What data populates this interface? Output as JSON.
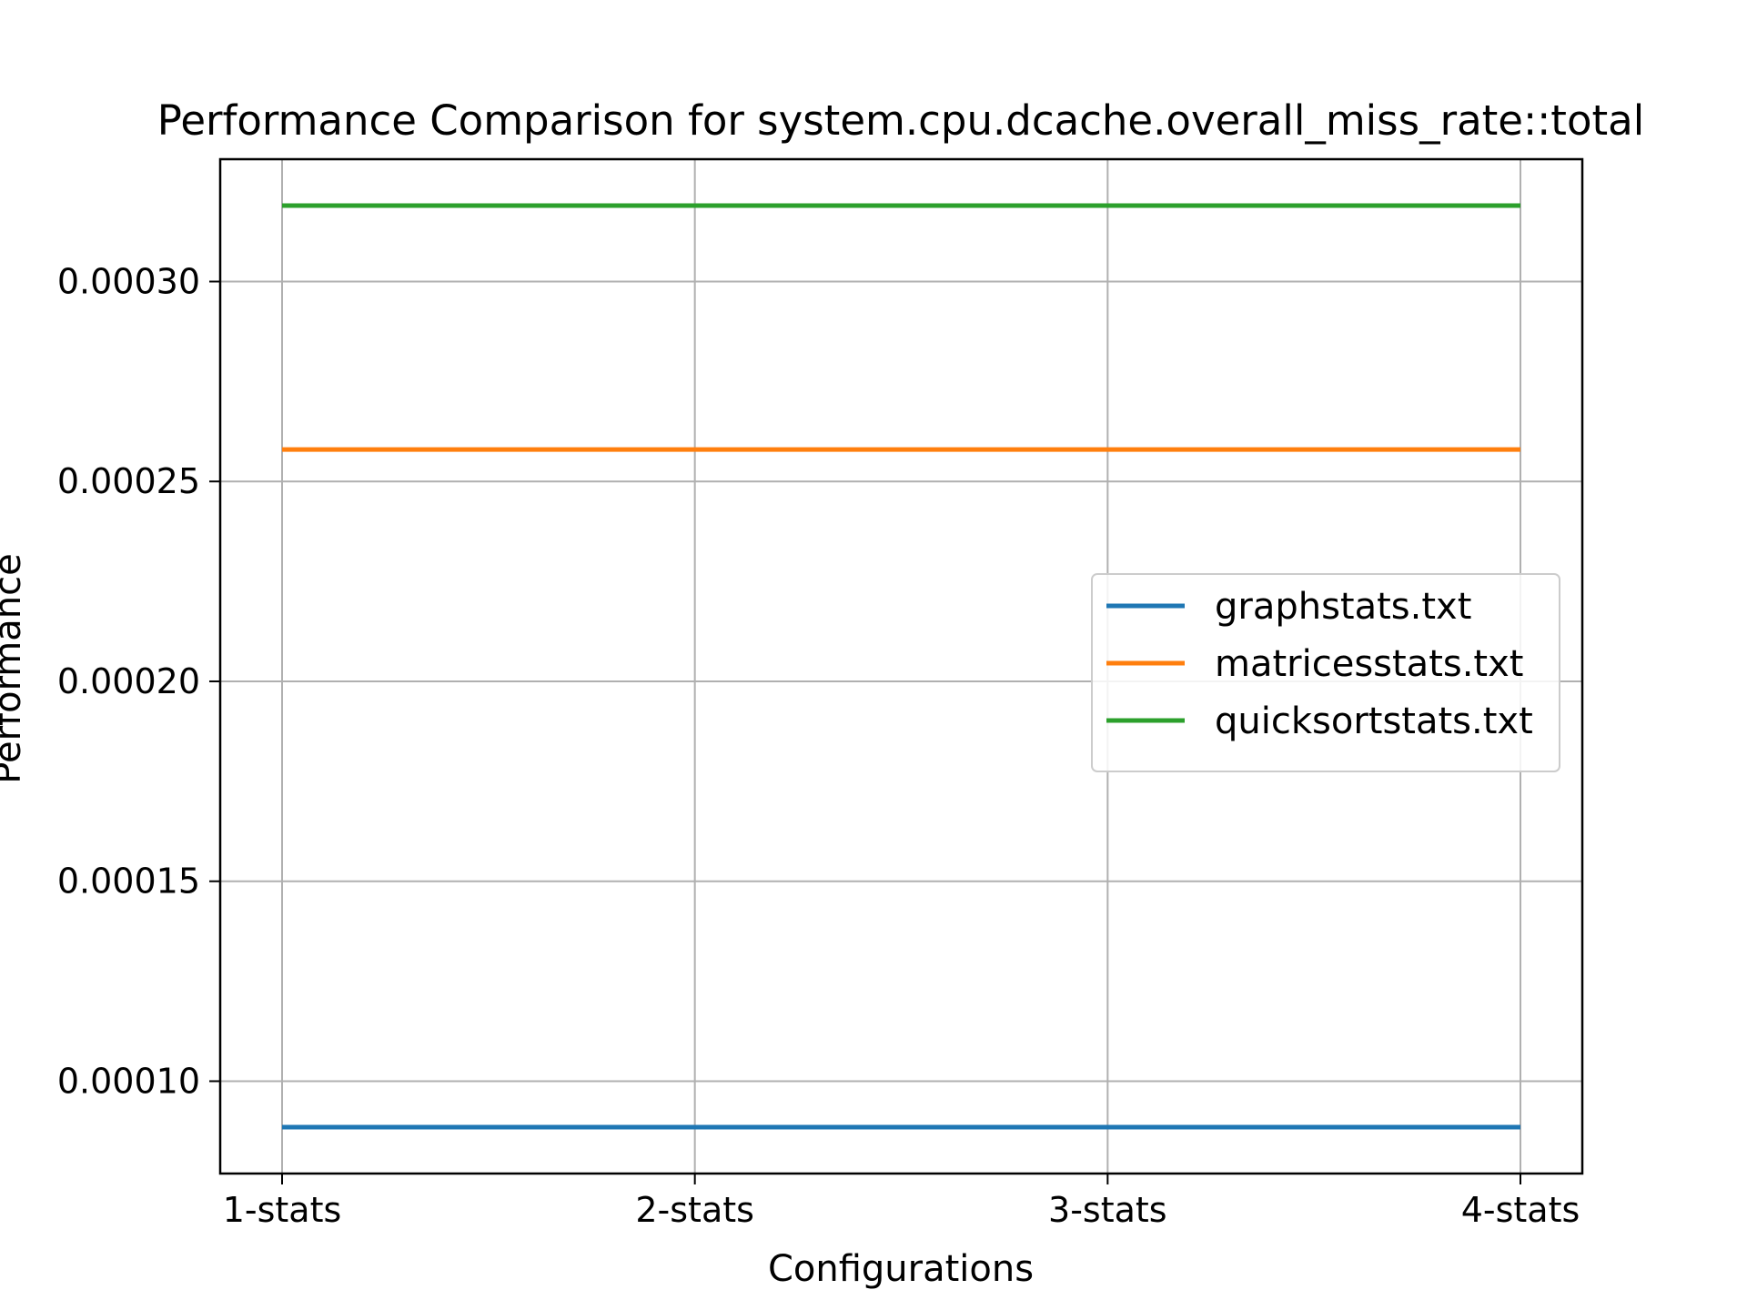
{
  "chart_data": {
    "type": "line",
    "title": "Performance Comparison for system.cpu.dcache.overall_miss_rate::total",
    "xlabel": "Configurations",
    "ylabel": "Performance",
    "categories": [
      "1-stats",
      "2-stats",
      "3-stats",
      "4-stats"
    ],
    "series": [
      {
        "name": "graphstats.txt",
        "color": "#1f77b4",
        "values": [
          8.85e-05,
          8.85e-05,
          8.85e-05,
          8.85e-05
        ]
      },
      {
        "name": "matricesstats.txt",
        "color": "#ff7f0e",
        "values": [
          0.000258,
          0.000258,
          0.000258,
          0.000258
        ]
      },
      {
        "name": "quicksortstats.txt",
        "color": "#2ca02c",
        "values": [
          0.000319,
          0.000319,
          0.000319,
          0.000319
        ]
      }
    ],
    "yticks": [
      0.0001,
      0.00015,
      0.0002,
      0.00025,
      0.0003
    ],
    "ytick_labels": [
      "0.00010",
      "0.00015",
      "0.00020",
      "0.00025",
      "0.00030"
    ],
    "ylim": [
      7.69e-05,
      0.0003306
    ],
    "grid": true,
    "legend_position": "center-right"
  }
}
